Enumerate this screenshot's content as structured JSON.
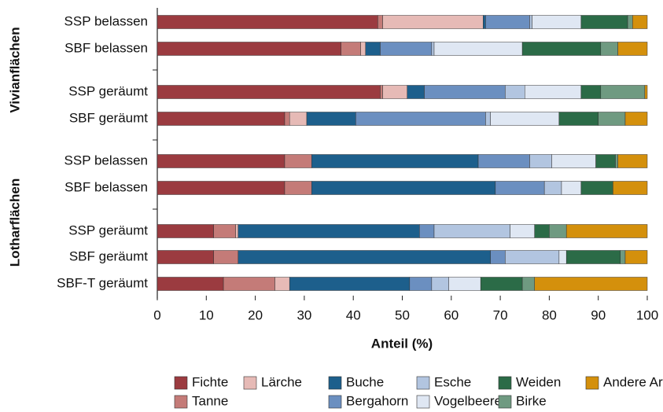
{
  "chart_data": {
    "type": "stacked-bar-horizontal",
    "x_label": "Anteil (%)",
    "y_groups": [
      "Vivianflächen",
      "Lotharflächen"
    ],
    "categories": [
      "SSP belassen",
      "SBF belassen",
      "SSP geräumt",
      "SBF geräumt",
      "SSP belassen",
      "SBF belassen",
      "SSP geräumt",
      "SBF geräumt",
      "SBF-T geräumt"
    ],
    "xlim": [
      0,
      100
    ],
    "xticks": [
      0,
      10,
      20,
      30,
      40,
      50,
      60,
      70,
      80,
      90,
      100
    ],
    "series": [
      {
        "name": "Fichte",
        "color": "#9b3b40",
        "values": [
          45,
          37.5,
          45.5,
          26,
          26,
          26,
          11.5,
          11.5,
          13.5
        ]
      },
      {
        "name": "Tanne",
        "color": "#c47b78",
        "values": [
          1,
          4,
          0.5,
          1,
          5.5,
          5.5,
          4.5,
          5,
          10.5
        ]
      },
      {
        "name": "Lärche",
        "color": "#e6bab6",
        "values": [
          20.5,
          1,
          5,
          3.5,
          0,
          0,
          0.5,
          0,
          3
        ]
      },
      {
        "name": "Buche",
        "color": "#1d5f8c",
        "values": [
          0.5,
          3,
          3.5,
          10,
          34,
          37.5,
          37,
          51.5,
          24.5
        ]
      },
      {
        "name": "Bergahorn",
        "color": "#6b8fc0",
        "values": [
          9,
          10.5,
          16.5,
          26.5,
          10.5,
          10,
          3,
          3,
          4.5
        ]
      },
      {
        "name": "Esche",
        "color": "#b2c5e0",
        "values": [
          0.5,
          0.5,
          4,
          1,
          4.5,
          3.5,
          15.5,
          11,
          3.5
        ]
      },
      {
        "name": "Vogelbeere",
        "color": "#dfe7f3",
        "values": [
          10,
          18,
          11.5,
          14,
          9,
          4,
          5,
          1.5,
          6.5
        ]
      },
      {
        "name": "Weiden",
        "color": "#2b6b47",
        "values": [
          9.5,
          16,
          4,
          8,
          4,
          6.5,
          3,
          11,
          8.5
        ]
      },
      {
        "name": "Birke",
        "color": "#6f9a81",
        "values": [
          1,
          3.5,
          9,
          5.5,
          0.5,
          0,
          3.5,
          1,
          2.5
        ]
      },
      {
        "name": "Andere Arten",
        "color": "#d4900c",
        "values": [
          3,
          6,
          0.5,
          4.5,
          6,
          7,
          16.5,
          4.5,
          23
        ]
      }
    ]
  }
}
